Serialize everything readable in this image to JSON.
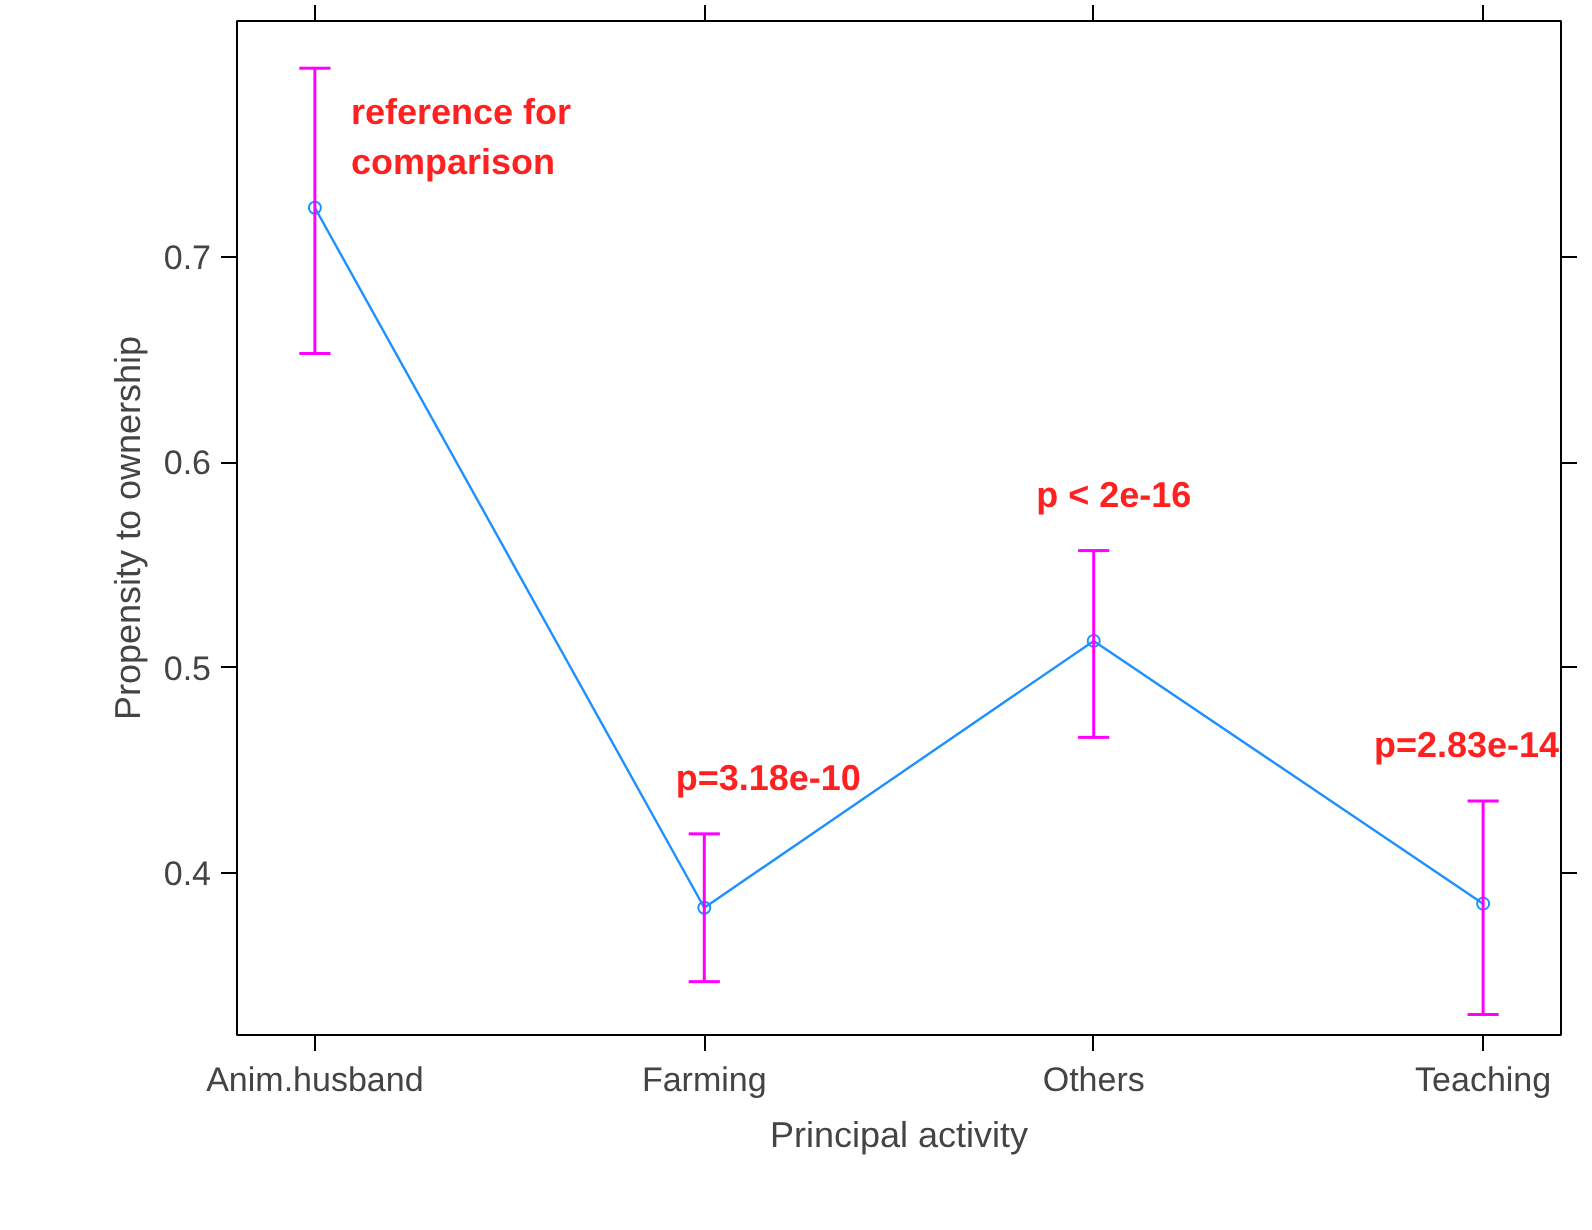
{
  "chart_data": {
    "type": "line",
    "xlabel": "Principal activity",
    "ylabel": "Propensity to ownership",
    "categories": [
      "Anim.husband",
      "Farming",
      "Others",
      "Teaching"
    ],
    "series": [
      {
        "color": "#1e90ff",
        "values": [
          0.724,
          0.383,
          0.513,
          0.385
        ],
        "errors": [
          [
            0.653,
            0.792
          ],
          [
            0.347,
            0.419
          ],
          [
            0.466,
            0.557
          ],
          [
            0.331,
            0.435
          ]
        ]
      }
    ],
    "ylim": [
      0.321,
      0.815
    ],
    "yticks": [
      0.4,
      0.5,
      0.6,
      0.7
    ],
    "marker": "circle",
    "line_style": "solid",
    "annotations": [
      "reference for\ncomparison",
      "p=3.18e-10",
      "p < 2e-16",
      "p=2.83e-14"
    ]
  }
}
